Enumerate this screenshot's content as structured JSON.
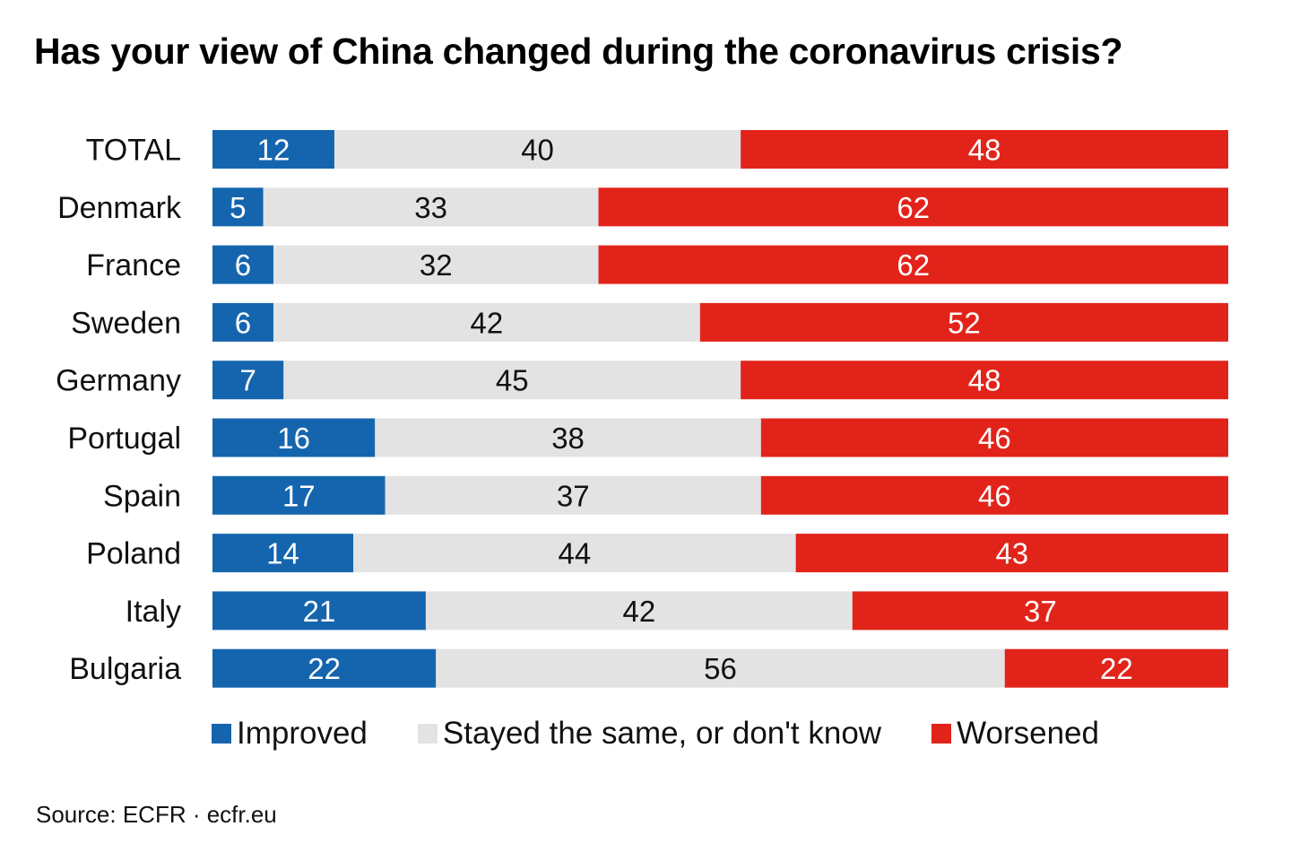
{
  "chart_data": {
    "type": "bar",
    "orientation": "horizontal",
    "stacked": true,
    "title": "Has your view of China changed during the coronavirus crisis?",
    "categories": [
      "TOTAL",
      "Denmark",
      "France",
      "Sweden",
      "Germany",
      "Portugal",
      "Spain",
      "Poland",
      "Italy",
      "Bulgaria"
    ],
    "series": [
      {
        "name": "Improved",
        "color": "#1465AE",
        "text_color": "#ffffff",
        "values": [
          12,
          5,
          6,
          6,
          7,
          16,
          17,
          14,
          21,
          22
        ]
      },
      {
        "name": "Stayed the same, or don't know",
        "color": "#E3E3E3",
        "text_color": "#111111",
        "values": [
          40,
          33,
          32,
          42,
          45,
          38,
          37,
          44,
          42,
          56
        ]
      },
      {
        "name": "Worsened",
        "color": "#E2231A",
        "text_color": "#ffffff",
        "values": [
          48,
          62,
          62,
          52,
          48,
          46,
          46,
          43,
          37,
          22
        ]
      }
    ],
    "xlabel": "",
    "ylabel": "",
    "grid": false,
    "legend": "bottom"
  },
  "source": "Source: ECFR · ecfr.eu"
}
